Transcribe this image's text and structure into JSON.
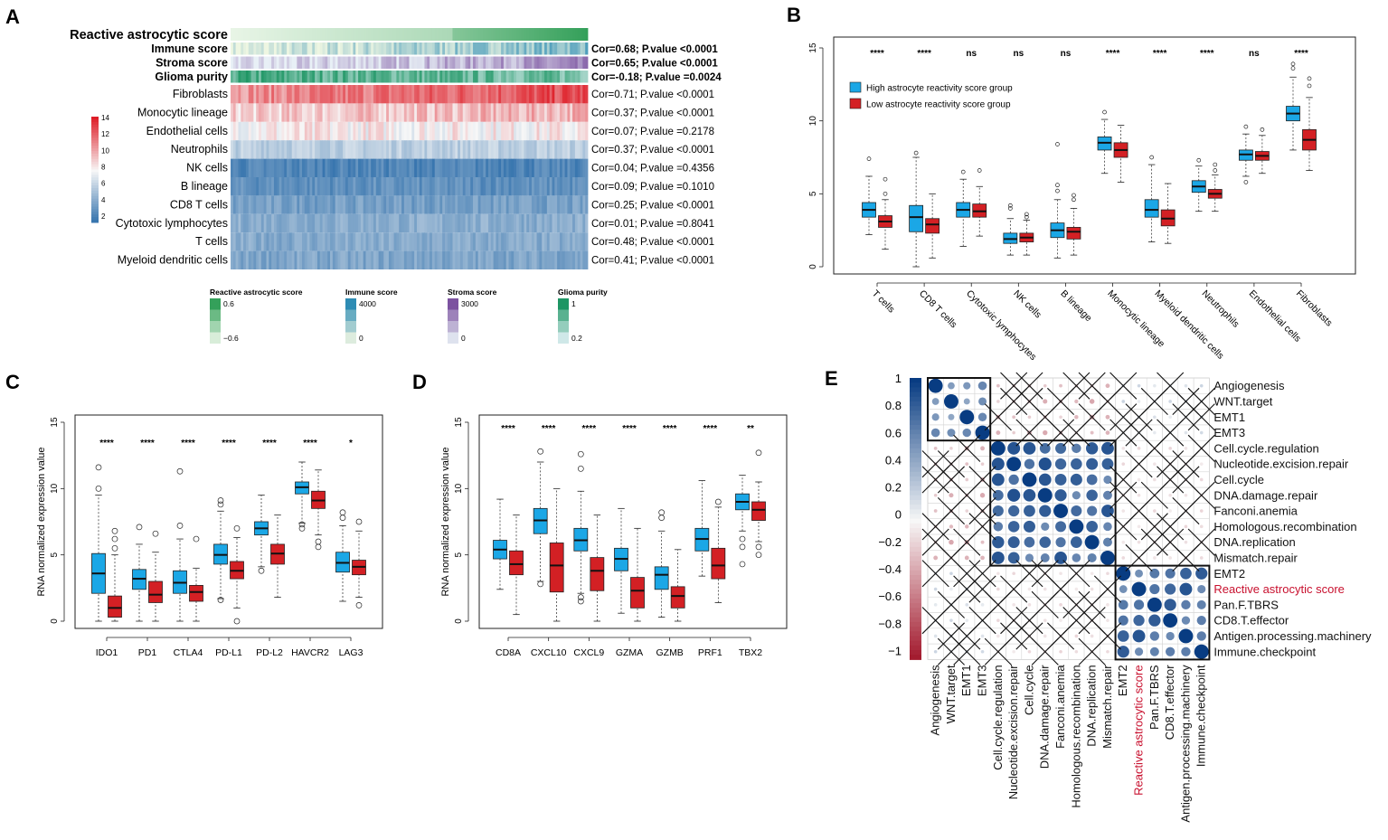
{
  "panel_labels": {
    "a": "A",
    "b": "B",
    "c": "C",
    "d": "D",
    "e": "E"
  },
  "colors": {
    "high": "#1ba7e6",
    "low": "#d32024",
    "green": "#3aa35a",
    "blue_dark": "#2f6fab",
    "red_dark": "#c8102e"
  },
  "chart_data": [
    {
      "panel": "A",
      "type": "heatmap",
      "title": "Reactive astrocytic score",
      "annotation_rows": [
        {
          "label": "Immune score",
          "stat": "Cor=0.68; P.value <0.0001",
          "palette": "immune"
        },
        {
          "label": "Stroma score",
          "stat": "Cor=0.65; P.value <0.0001",
          "palette": "stroma"
        },
        {
          "label": "Glioma purity",
          "stat": "Cor=-0.18; P.value =0.0024",
          "palette": "purity"
        }
      ],
      "rows": [
        {
          "label": "Fibroblasts",
          "stat": "Cor=0.71; P.value <0.0001",
          "level": 10.5
        },
        {
          "label": "Monocytic lineage",
          "stat": "Cor=0.37; P.value <0.0001",
          "level": 8.6
        },
        {
          "label": "Endothelial cells",
          "stat": "Cor=0.07; P.value =0.2178",
          "level": 7.8
        },
        {
          "label": "Neutrophils",
          "stat": "Cor=0.37; P.value <0.0001",
          "level": 5.6
        },
        {
          "label": "NK cells",
          "stat": "Cor=0.04; P.value =0.4356",
          "level": 2.1
        },
        {
          "label": "B lineage",
          "stat": "Cor=0.09; P.value =0.1010",
          "level": 2.6
        },
        {
          "label": "CD8 T cells",
          "stat": "Cor=0.25; P.value <0.0001",
          "level": 3.3
        },
        {
          "label": "Cytotoxic lymphocytes",
          "stat": "Cor=0.01; P.value =0.8041",
          "level": 4.0
        },
        {
          "label": "T cells",
          "stat": "Cor=0.48; P.value <0.0001",
          "level": 3.8
        },
        {
          "label": "Myeloid dendritic cells",
          "stat": "Cor=0.41; P.value <0.0001",
          "level": 3.6
        }
      ],
      "colorbar": {
        "ticks": [
          "14",
          "12",
          "10",
          "8",
          "6",
          "4",
          "2"
        ],
        "range": [
          1,
          14
        ]
      },
      "legends": [
        {
          "title": "Reactive astrocytic score",
          "top": "0.6",
          "bottom": "−0.6",
          "palette": "green"
        },
        {
          "title": "Immune score",
          "top": "4000",
          "bottom": "0",
          "palette": "immune"
        },
        {
          "title": "Stroma score",
          "top": "3000",
          "bottom": "0",
          "palette": "stroma"
        },
        {
          "title": "Glioma purity",
          "top": "1",
          "bottom": "0.2",
          "palette": "purity"
        }
      ]
    },
    {
      "panel": "B",
      "type": "box",
      "ylim": [
        0,
        15
      ],
      "yticks": [
        "0",
        "5",
        "10",
        "15"
      ],
      "legend": [
        "High astrocyte reactivity score group",
        "Low astrocyte reactivity score group"
      ],
      "categories": [
        "T cells",
        "CD8 T cells",
        "Cytotoxic lymphocytes",
        "NK cells",
        "B lineage",
        "Monocytic lineage",
        "Myeloid dendritic cells",
        "Neutrophils",
        "Endothelial cells",
        "Fibroblasts"
      ],
      "significance": [
        "****",
        "****",
        "ns",
        "ns",
        "ns",
        "****",
        "****",
        "****",
        "ns",
        "****"
      ],
      "series": [
        {
          "name": "High",
          "boxes": [
            [
              2.2,
              3.4,
              3.9,
              4.4,
              6.2
            ],
            [
              0.0,
              2.4,
              3.4,
              4.2,
              7.5
            ],
            [
              1.4,
              3.4,
              3.9,
              4.4,
              6.0
            ],
            [
              0.8,
              1.6,
              1.9,
              2.3,
              3.3
            ],
            [
              0.6,
              2.0,
              2.5,
              3.0,
              4.6
            ],
            [
              6.4,
              8.0,
              8.5,
              8.9,
              10.1
            ],
            [
              1.7,
              3.4,
              3.9,
              4.6,
              7.0
            ],
            [
              3.8,
              5.1,
              5.5,
              5.9,
              6.9
            ],
            [
              6.2,
              7.3,
              7.7,
              8.0,
              9.1
            ],
            [
              8.0,
              10.0,
              10.5,
              11.0,
              13.0
            ]
          ],
          "outliers": [
            [
              7.4
            ],
            [
              7.8
            ],
            [
              6.5
            ],
            [
              4.0,
              4.2
            ],
            [
              5.2,
              5.6,
              8.4
            ],
            [
              10.6
            ],
            [
              7.5
            ],
            [
              7.3
            ],
            [
              5.8,
              9.6
            ],
            [
              13.6,
              13.9
            ]
          ]
        },
        {
          "name": "Low",
          "boxes": [
            [
              1.2,
              2.7,
              3.1,
              3.5,
              4.6
            ],
            [
              0.6,
              2.3,
              2.9,
              3.3,
              5.0
            ],
            [
              2.1,
              3.4,
              3.8,
              4.3,
              5.5
            ],
            [
              0.8,
              1.7,
              2.0,
              2.3,
              3.2
            ],
            [
              0.8,
              1.9,
              2.4,
              2.7,
              4.0
            ],
            [
              5.8,
              7.5,
              8.0,
              8.5,
              9.7
            ],
            [
              1.6,
              2.8,
              3.3,
              3.9,
              5.7
            ],
            [
              3.8,
              4.7,
              5.0,
              5.3,
              6.3
            ],
            [
              6.4,
              7.3,
              7.6,
              7.9,
              9.0
            ],
            [
              6.6,
              8.0,
              8.7,
              9.4,
              11.6
            ]
          ],
          "outliers": [
            [
              5.0,
              6.0
            ],
            [],
            [
              6.6
            ],
            [
              3.4,
              3.6
            ],
            [
              4.6,
              4.9
            ],
            [],
            [],
            [
              6.6,
              7.0
            ],
            [
              9.4
            ],
            [
              12.4,
              12.9
            ]
          ]
        }
      ]
    },
    {
      "panel": "C",
      "type": "box",
      "ylabel": "RNA normalized expression value",
      "ylim": [
        0,
        15
      ],
      "yticks": [
        "0",
        "5",
        "10",
        "15"
      ],
      "categories": [
        "IDO1",
        "PD1",
        "CTLA4",
        "PD-L1",
        "PD-L2",
        "HAVCR2",
        "LAG3"
      ],
      "significance": [
        "****",
        "****",
        "****",
        "****",
        "****",
        "****",
        "*"
      ],
      "series": [
        {
          "name": "High",
          "boxes": [
            [
              0.0,
              2.1,
              3.6,
              5.1,
              9.5
            ],
            [
              0.0,
              2.4,
              3.2,
              3.9,
              5.8
            ],
            [
              0.0,
              2.1,
              2.9,
              3.8,
              6.2
            ],
            [
              1.7,
              4.3,
              5.0,
              5.8,
              8.3
            ],
            [
              4.1,
              6.5,
              7.0,
              7.5,
              9.5
            ],
            [
              7.4,
              9.6,
              10.1,
              10.5,
              12.0
            ],
            [
              1.5,
              3.7,
              4.4,
              5.2,
              7.2
            ]
          ],
          "outliers": [
            [
              10.0,
              11.6
            ],
            [
              7.1
            ],
            [
              7.2,
              11.3
            ],
            [
              8.8,
              9.1,
              1.6
            ],
            [
              3.8
            ],
            [
              7.0,
              7.3
            ],
            [
              7.8,
              8.2
            ]
          ]
        },
        {
          "name": "Low",
          "boxes": [
            [
              0.0,
              0.3,
              1.0,
              1.9,
              5.0
            ],
            [
              0.0,
              1.4,
              2.0,
              3.0,
              5.2
            ],
            [
              0.0,
              1.5,
              2.2,
              2.7,
              4.0
            ],
            [
              1.0,
              3.2,
              3.8,
              4.5,
              6.3
            ],
            [
              1.8,
              4.3,
              5.1,
              5.8,
              8.0
            ],
            [
              6.5,
              8.5,
              9.1,
              9.8,
              11.4
            ],
            [
              1.8,
              3.5,
              4.1,
              4.6,
              6.8
            ]
          ],
          "outliers": [
            [
              5.5,
              6.2,
              6.8
            ],
            [
              6.6
            ],
            [
              6.2
            ],
            [
              7.0,
              0.0
            ],
            [],
            [
              5.6,
              6.0
            ],
            [
              7.5,
              1.2
            ]
          ]
        }
      ]
    },
    {
      "panel": "D",
      "type": "box",
      "ylabel": "RNA normalized expression value",
      "ylim": [
        0,
        15
      ],
      "yticks": [
        "0",
        "5",
        "10",
        "15"
      ],
      "categories": [
        "CD8A",
        "CXCL10",
        "CXCL9",
        "GZMA",
        "GZMB",
        "PRF1",
        "TBX2"
      ],
      "significance": [
        "****",
        "****",
        "****",
        "****",
        "****",
        "****",
        "**"
      ],
      "series": [
        {
          "name": "High",
          "boxes": [
            [
              2.4,
              4.7,
              5.4,
              6.1,
              9.2
            ],
            [
              3.0,
              6.6,
              7.6,
              8.5,
              12.0
            ],
            [
              2.1,
              5.3,
              6.1,
              7.0,
              9.8
            ],
            [
              0.6,
              3.8,
              4.7,
              5.5,
              8.5
            ],
            [
              0.3,
              2.4,
              3.5,
              4.1,
              6.8
            ],
            [
              3.4,
              5.3,
              6.2,
              7.0,
              10.6
            ],
            [
              6.8,
              8.4,
              9.0,
              9.6,
              11.0
            ]
          ],
          "outliers": [
            [],
            [
              2.8,
              12.8
            ],
            [
              1.5,
              1.8,
              11.5,
              12.6
            ],
            [],
            [
              7.8,
              8.2
            ],
            [],
            [
              4.3,
              5.6,
              6.2
            ]
          ]
        },
        {
          "name": "Low",
          "boxes": [
            [
              0.5,
              3.5,
              4.3,
              5.3,
              8.0
            ],
            [
              0.0,
              2.2,
              4.2,
              5.9,
              10.0
            ],
            [
              0.0,
              2.3,
              3.8,
              4.8,
              8.0
            ],
            [
              0.0,
              1.0,
              2.3,
              3.3,
              7.0
            ],
            [
              0.0,
              1.0,
              1.9,
              2.6,
              5.4
            ],
            [
              1.4,
              3.2,
              4.2,
              5.5,
              8.6
            ],
            [
              6.0,
              7.6,
              8.4,
              9.0,
              10.5
            ]
          ],
          "outliers": [
            [],
            [],
            [],
            [],
            [],
            [
              9.0
            ],
            [
              5.0,
              5.6,
              12.7
            ]
          ]
        }
      ]
    },
    {
      "panel": "E",
      "type": "heatmap",
      "subtype": "correlation-matrix",
      "colorbar_ticks": [
        "1",
        "0.8",
        "0.6",
        "0.4",
        "0.2",
        "0",
        "−0.2",
        "−0.4",
        "−0.6",
        "−0.8",
        "−1"
      ],
      "labels": [
        "Angiogenesis",
        "WNT.target",
        "EMT1",
        "EMT3",
        "Cell.cycle.regulation",
        "Nucleotide.excision.repair",
        "Cell.cycle",
        "DNA.damage.repair",
        "Fanconi.anemia",
        "Homologous.recombination",
        "DNA.replication",
        "Mismatch.repair",
        "EMT2",
        "Reactive astrocytic score",
        "Pan.F.TBRS",
        "CD8.T.effector",
        "Antigen.processing.machinery",
        "Immune.checkpoint"
      ],
      "highlight_label": "Reactive astrocytic score",
      "clusters": [
        [
          0,
          3
        ],
        [
          4,
          11
        ],
        [
          12,
          17
        ]
      ]
    }
  ]
}
